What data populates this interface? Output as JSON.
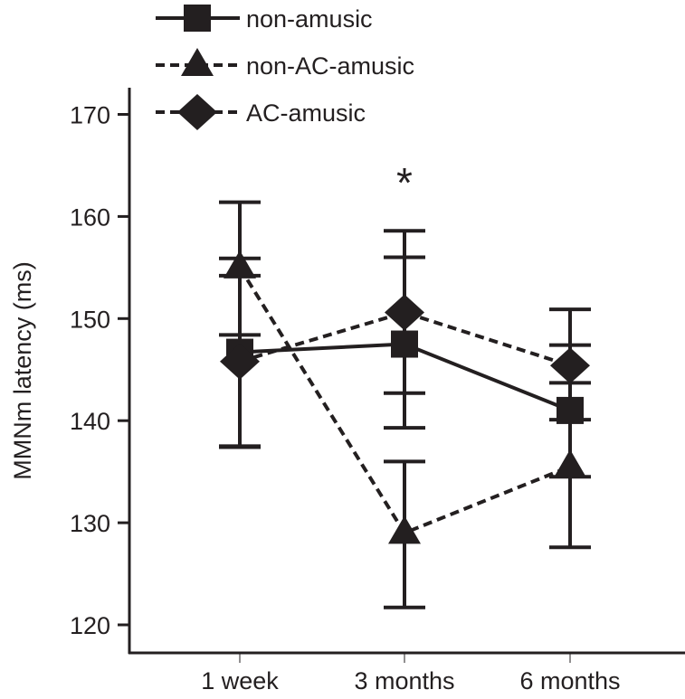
{
  "chart_data": {
    "type": "line",
    "title": "",
    "xlabel": "",
    "ylabel": "MMNm latency (ms)",
    "ylim": [
      117,
      172
    ],
    "yticks": [
      120,
      130,
      140,
      150,
      160,
      170
    ],
    "categories": [
      "1 week",
      "3 months",
      "6 months"
    ],
    "grid": false,
    "legend_position": "top-left",
    "annotations": [
      {
        "text": "*",
        "category": "3 months"
      }
    ],
    "series": [
      {
        "name": "non-amusic",
        "marker": "square",
        "line": "solid",
        "values": [
          146.7,
          147.5,
          141.0
        ],
        "err_low": [
          137.5,
          139.3,
          134.5
        ],
        "err_high": [
          155.9,
          156.0,
          147.4
        ]
      },
      {
        "name": "non-AC-amusic",
        "marker": "triangle",
        "line": "dashed",
        "values": [
          155.0,
          129.0,
          135.5
        ],
        "err_low": [
          148.4,
          121.7,
          127.6
        ],
        "err_high": [
          161.4,
          136.0,
          143.7
        ]
      },
      {
        "name": "AC-amusic",
        "marker": "diamond",
        "line": "dashed",
        "values": [
          145.8,
          150.6,
          145.4
        ],
        "err_low": [
          137.4,
          142.7,
          140.1
        ],
        "err_high": [
          154.2,
          158.6,
          150.9
        ]
      }
    ],
    "color": "#231f20"
  }
}
